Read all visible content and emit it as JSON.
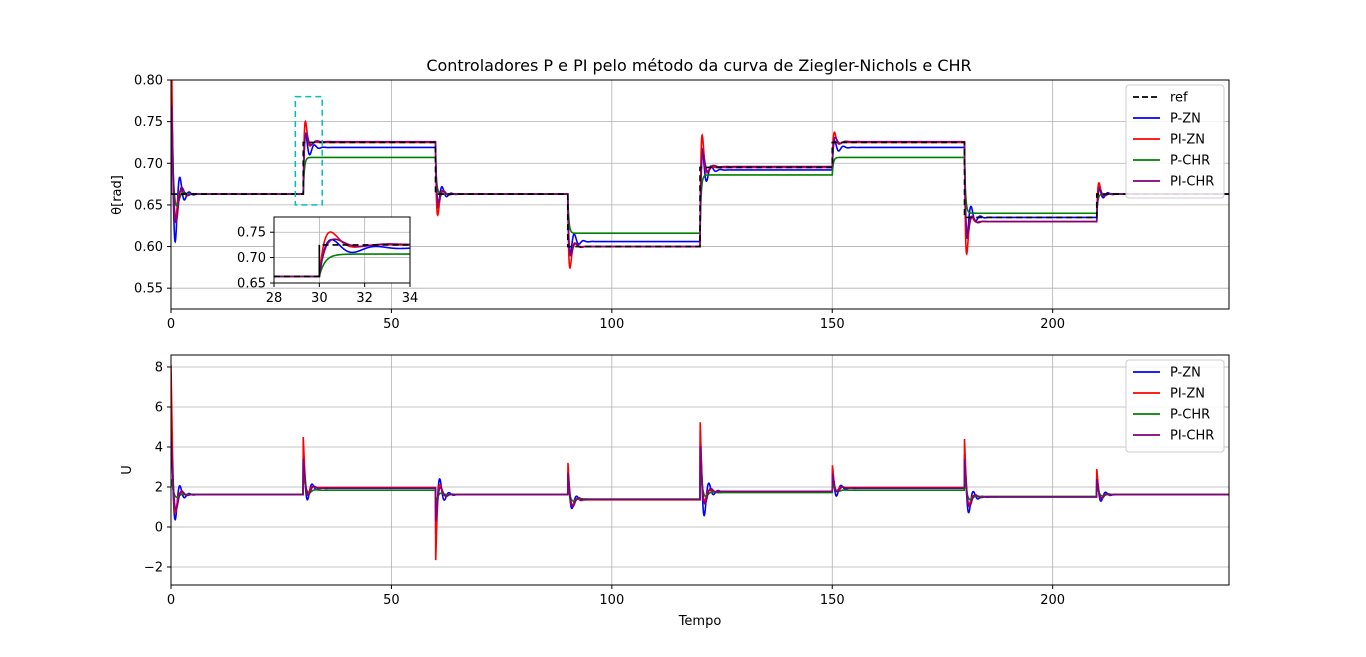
{
  "chart_data": [
    {
      "type": "line",
      "title": "Controladores P e PI pelo método da curva de Ziegler-Nichols e CHR",
      "xlabel": "",
      "ylabel": "θ[rad]",
      "xlim": [
        0,
        240
      ],
      "ylim": [
        0.525,
        0.8
      ],
      "xticks": [
        0,
        50,
        100,
        150,
        200
      ],
      "yticks": [
        0.55,
        0.6,
        0.65,
        0.7,
        0.75,
        0.8
      ],
      "ytick_labels": [
        "0.55",
        "0.60",
        "0.65",
        "0.70",
        "0.75",
        "0.80"
      ],
      "grid": true,
      "legend": "top-right",
      "step_times": [
        0,
        30,
        60,
        90,
        120,
        150,
        180,
        210
      ],
      "reference": {
        "name": "ref",
        "color": "#000000",
        "dashed": true,
        "levels": [
          0.663,
          0.725,
          0.663,
          0.6,
          0.695,
          0.725,
          0.635,
          0.663
        ]
      },
      "series": [
        {
          "name": "P-ZN",
          "color": "#0000ff",
          "levels": [
            0.663,
            0.719,
            0.663,
            0.606,
            0.692,
            0.719,
            0.635,
            0.663
          ],
          "overshoot": 0.5,
          "decay": 1.0,
          "freq": 3.0
        },
        {
          "name": "PI-ZN",
          "color": "#ff0000",
          "levels": [
            0.663,
            0.725,
            0.663,
            0.6,
            0.695,
            0.725,
            0.63,
            0.663
          ],
          "overshoot": 1.0,
          "decay": 0.55,
          "freq": 2.6
        },
        {
          "name": "P-CHR",
          "color": "#008000",
          "levels": [
            0.663,
            0.707,
            0.663,
            0.616,
            0.686,
            0.707,
            0.64,
            0.663
          ],
          "overshoot": 0.0,
          "decay": 0.8,
          "freq": 2.0
        },
        {
          "name": "PI-CHR",
          "color": "#800080",
          "levels": [
            0.663,
            0.726,
            0.663,
            0.6,
            0.696,
            0.726,
            0.63,
            0.663
          ],
          "overshoot": 0.35,
          "decay": 0.9,
          "freq": 2.4
        }
      ],
      "highlight_box": {
        "x": [
          28.2,
          34.3
        ],
        "y": [
          0.65,
          0.78
        ],
        "color": "#00bfbf"
      },
      "inset": {
        "xlim": [
          28,
          34
        ],
        "ylim": [
          0.65,
          0.78
        ],
        "xticks": [
          28,
          30,
          32,
          34
        ],
        "yticks": [
          0.65,
          0.7,
          0.75
        ],
        "ytick_labels": [
          "0.65",
          "0.70",
          "0.75"
        ]
      }
    },
    {
      "type": "line",
      "title": "",
      "xlabel": "Tempo",
      "ylabel": "U",
      "xlim": [
        0,
        240
      ],
      "ylim": [
        -2.9,
        8.6
      ],
      "xticks": [
        0,
        50,
        100,
        150,
        200
      ],
      "yticks": [
        -2,
        0,
        2,
        4,
        6,
        8
      ],
      "ytick_labels": [
        "−2",
        "0",
        "2",
        "4",
        "6",
        "8"
      ],
      "grid": true,
      "legend": "top-right",
      "step_times": [
        0,
        30,
        60,
        90,
        120,
        150,
        180,
        210
      ],
      "series": [
        {
          "name": "P-ZN",
          "color": "#0000ff",
          "levels": [
            1.62,
            1.94,
            1.62,
            1.38,
            1.77,
            1.94,
            1.5,
            1.62
          ],
          "kicks": [
            5.0,
            3.5,
            -0.5,
            2.6,
            5.0,
            3.0,
            3.6,
            2.5
          ],
          "decay": 1.0,
          "freq": 3.0
        },
        {
          "name": "PI-ZN",
          "color": "#ff0000",
          "levels": [
            1.62,
            1.98,
            1.62,
            1.36,
            1.78,
            1.98,
            1.52,
            1.62
          ],
          "kicks": [
            8.1,
            4.5,
            -2.0,
            3.4,
            5.6,
            3.2,
            4.4,
            2.9
          ],
          "decay": 0.55,
          "freq": 2.6
        },
        {
          "name": "P-CHR",
          "color": "#008000",
          "levels": [
            1.62,
            1.84,
            1.62,
            1.4,
            1.72,
            1.84,
            1.52,
            1.62
          ],
          "kicks": [
            2.4,
            2.6,
            1.2,
            2.0,
            2.8,
            2.2,
            2.4,
            2.0
          ],
          "decay": 0.8,
          "freq": 2.0
        },
        {
          "name": "PI-CHR",
          "color": "#800080",
          "levels": [
            1.62,
            1.95,
            1.62,
            1.38,
            1.78,
            1.95,
            1.5,
            1.62
          ],
          "kicks": [
            4.5,
            3.4,
            0.2,
            2.8,
            4.2,
            2.7,
            3.4,
            2.4
          ],
          "decay": 0.9,
          "freq": 2.4
        }
      ]
    }
  ]
}
